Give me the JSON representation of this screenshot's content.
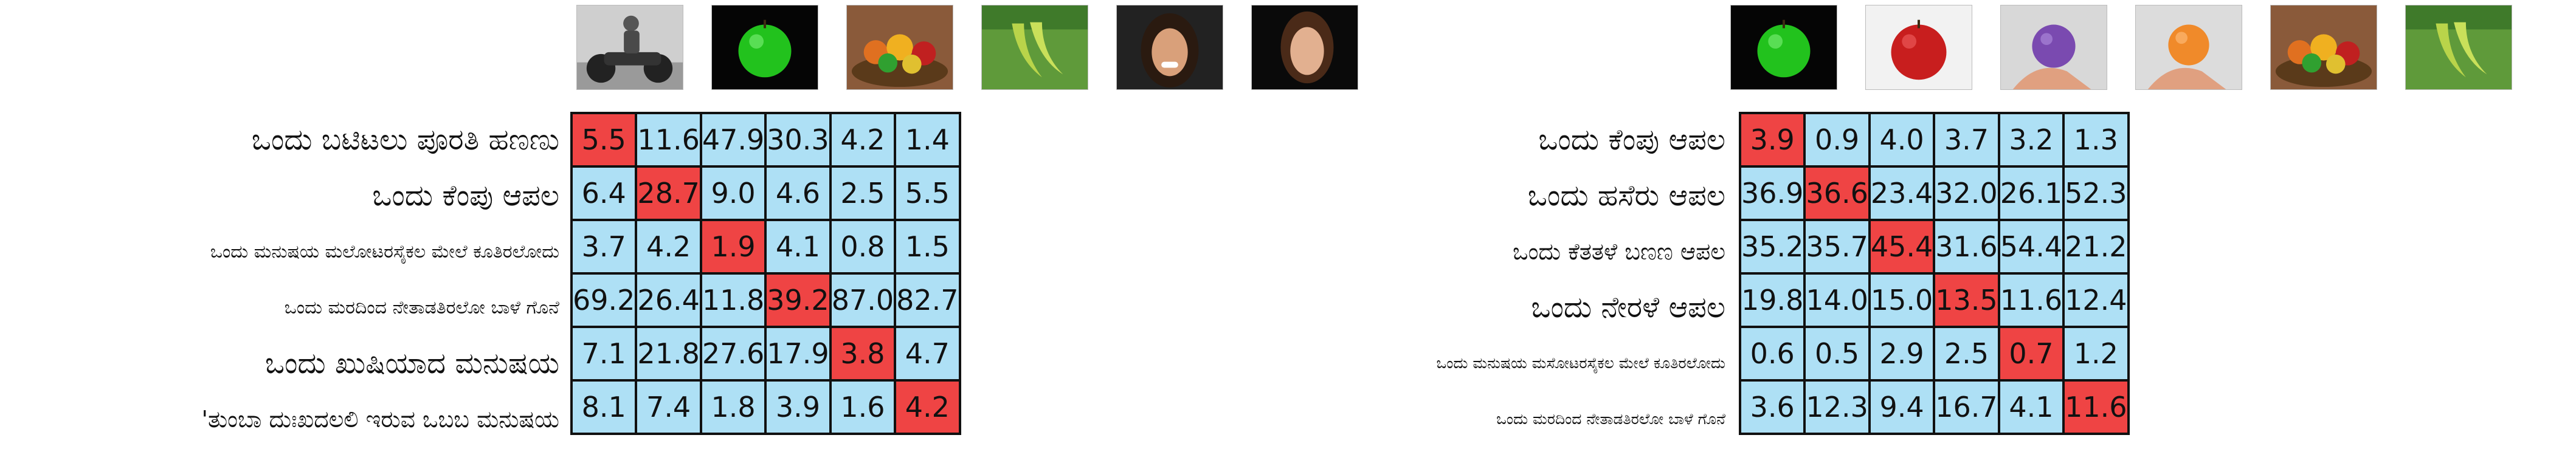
{
  "colors": {
    "cell": "#aee0f5",
    "highlight": "#ef4444",
    "border": "#111111"
  },
  "chart_data": [
    {
      "type": "heatmap",
      "columns": [
        "motorcyclist-image",
        "green-apple-image",
        "fruit-basket-image",
        "bananas-on-tree-image",
        "laughing-woman-image",
        "sad-woman-image"
      ],
      "rows": [
        {
          "label": "ಒಂದು ಬಟಿಟಲು ಪೂರತಿ ಹಣಣು",
          "values": [
            5.5,
            11.6,
            47.9,
            30.3,
            4.2,
            1.4
          ],
          "highlight": 0
        },
        {
          "label": "ಒಂದು ಕೆಂಪು ಆಪಲ",
          "values": [
            6.4,
            28.7,
            9.0,
            4.6,
            2.5,
            5.5
          ],
          "highlight": 1
        },
        {
          "label": "ಒಂದು ಮನುಷಯ ಮಲೋಟರಸೈಕಲ ಮೇಲೆ ಕೂತಿರಲೋದು",
          "values": [
            3.7,
            4.2,
            1.9,
            4.1,
            0.8,
            1.5
          ],
          "highlight": 2
        },
        {
          "label": "ಒಂದು ಮರದಿಂದ ನೇತಾಡತಿರಲೋ ಬಾಳೆ ಗೊನೆ",
          "values": [
            69.2,
            26.4,
            11.8,
            39.2,
            87.0,
            82.7
          ],
          "highlight": 3
        },
        {
          "label": "ಒಂದು ಖುಷಿಯಾದ ಮನುಷಯ",
          "values": [
            7.1,
            21.8,
            27.6,
            17.9,
            3.8,
            4.7
          ],
          "highlight": 4
        },
        {
          "label": "'ತುಂಬಾ ದುಃಖದಲಲಿ ಇರುವ ಒಬಬ ಮನುಷಯ",
          "values": [
            8.1,
            7.4,
            1.8,
            3.9,
            1.6,
            4.2
          ],
          "highlight": 5
        }
      ]
    },
    {
      "type": "heatmap",
      "columns": [
        "green-apple-image",
        "red-apple-image",
        "purple-apple-image",
        "orange-apple-image",
        "fruit-basket-image",
        "bananas-on-tree-image"
      ],
      "rows": [
        {
          "label": "ಒಂದು ಕೆಂಪು ಆಪಲ",
          "values": [
            3.9,
            0.9,
            4.0,
            3.7,
            3.2,
            1.3
          ],
          "highlight": 0
        },
        {
          "label": "ಒಂದು ಹಸೆರು ಆಪಲ",
          "values": [
            36.9,
            36.6,
            23.4,
            32.0,
            26.1,
            52.3
          ],
          "highlight": 1
        },
        {
          "label": "ಒಂದು ಕೆತತಳೆ ಬಣಣ ಆಪಲ",
          "values": [
            35.2,
            35.7,
            45.4,
            31.6,
            54.4,
            21.2
          ],
          "highlight": 2
        },
        {
          "label": "ಒಂದು ನೇರಳೆ ಆಪಲ",
          "values": [
            19.8,
            14.0,
            15.0,
            13.5,
            11.6,
            12.4
          ],
          "highlight": 3
        },
        {
          "label": "ಒಂದು ಮನುಷಯ ಮಸೋಟರಸೈಕಲ ಮೇಲೆ ಕೂತಿರಲೋದು",
          "values": [
            0.6,
            0.5,
            2.9,
            2.5,
            0.7,
            1.2
          ],
          "highlight": 4
        },
        {
          "label": "ಒಂದು ಮರದಿಂದ ನೇತಾಡತಿರಲೋ ಬಾಳೆ ಗೊನೆ",
          "values": [
            3.6,
            12.3,
            9.4,
            16.7,
            4.1,
            11.6
          ],
          "highlight": 5
        }
      ]
    }
  ]
}
